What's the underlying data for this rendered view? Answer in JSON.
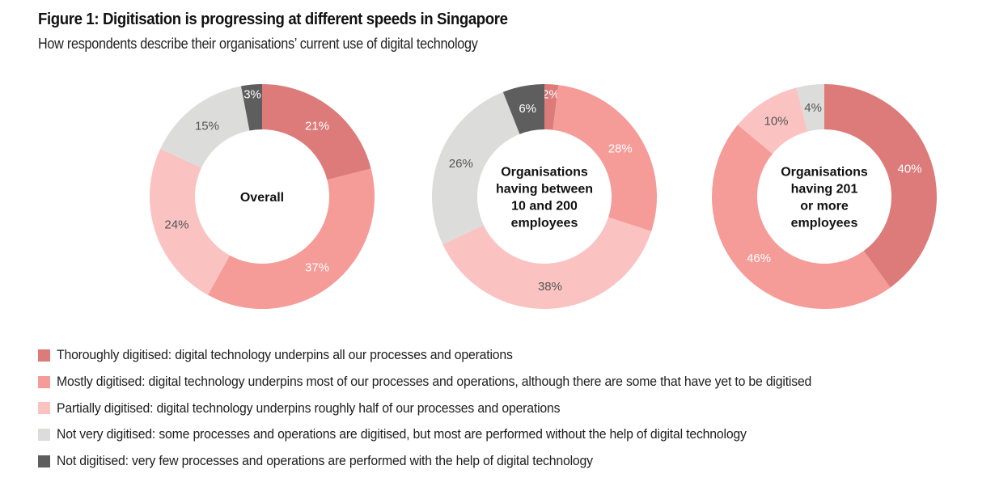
{
  "header": {
    "title": "Figure 1: Digitisation is progressing at different speeds in Singapore",
    "subtitle": "How respondents describe their organisations’ current use of digital technology"
  },
  "colors": {
    "thoroughly": "#dc7b7a",
    "mostly": "#f59b98",
    "partially": "#fac3c2",
    "not_very": "#dcdcda",
    "not": "#5f5e5e",
    "label_light": "#ffffff",
    "label_dark": "#555555"
  },
  "legend": [
    {
      "key": "thoroughly",
      "label": "Thoroughly digitised: digital technology underpins all our processes and operations"
    },
    {
      "key": "mostly",
      "label": "Mostly digitised: digital technology underpins most of our processes and operations, although there are some that have yet to be digitised"
    },
    {
      "key": "partially",
      "label": "Partially digitised: digital technology underpins roughly half of our processes and operations"
    },
    {
      "key": "not_very",
      "label": "Not very digitised: some processes and operations are digitised, but most are performed without the help of digital technology"
    },
    {
      "key": "not",
      "label": "Not digitised: very few processes and operations are performed with the help of digital technology"
    }
  ],
  "chart_data": [
    {
      "type": "pie",
      "variant": "donut",
      "title": "Overall",
      "center_label": [
        "Overall"
      ],
      "categories": [
        "Thoroughly digitised",
        "Mostly digitised",
        "Partially digitised",
        "Not very digitised",
        "Not digitised"
      ],
      "keys": [
        "thoroughly",
        "mostly",
        "partially",
        "not_very",
        "not"
      ],
      "values": [
        21,
        37,
        24,
        15,
        3
      ],
      "labels": [
        "21%",
        "37%",
        "24%",
        "15%",
        "3%"
      ],
      "start": "12 o'clock",
      "direction": "clockwise"
    },
    {
      "type": "pie",
      "variant": "donut",
      "title": "Organisations having between 10 and 200 employees",
      "center_label": [
        "Organisations",
        "having between",
        "10 and 200",
        "employees"
      ],
      "categories": [
        "Thoroughly digitised",
        "Mostly digitised",
        "Partially digitised",
        "Not very digitised",
        "Not digitised"
      ],
      "keys": [
        "thoroughly",
        "mostly",
        "partially",
        "not_very",
        "not"
      ],
      "values": [
        2,
        28,
        38,
        26,
        6
      ],
      "labels": [
        "2%",
        "28%",
        "38%",
        "26%",
        "6%"
      ],
      "start": "12 o'clock",
      "direction": "clockwise"
    },
    {
      "type": "pie",
      "variant": "donut",
      "title": "Organisations having 201 or more employees",
      "center_label": [
        "Organisations",
        "having 201",
        "or more",
        "employees"
      ],
      "categories": [
        "Thoroughly digitised",
        "Mostly digitised",
        "Partially digitised",
        "Not very digitised",
        "Not digitised"
      ],
      "keys": [
        "thoroughly",
        "mostly",
        "partially",
        "not_very",
        "not"
      ],
      "values": [
        40,
        46,
        10,
        4,
        0
      ],
      "labels": [
        "40%",
        "46%",
        "10%",
        "4%",
        ""
      ],
      "start": "12 o'clock",
      "direction": "clockwise"
    }
  ]
}
